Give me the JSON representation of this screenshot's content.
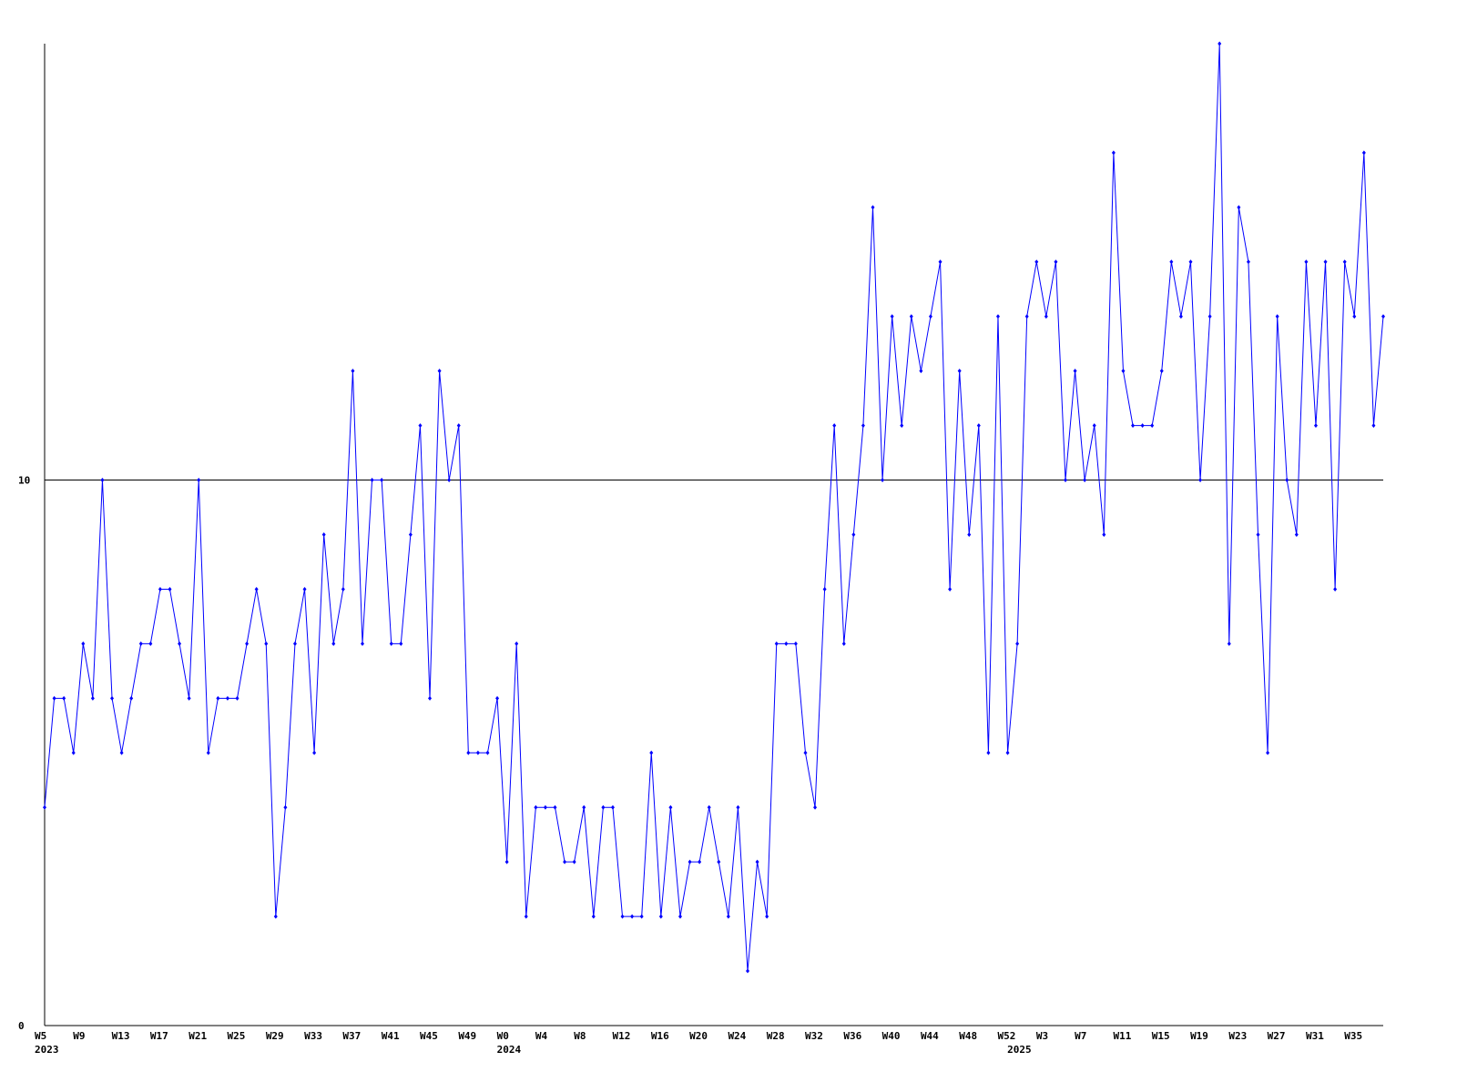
{
  "chart_data": {
    "type": "line",
    "categories": [
      "W5",
      null,
      null,
      null,
      "W9",
      null,
      null,
      null,
      "W13",
      null,
      null,
      null,
      "W17",
      null,
      null,
      null,
      "W21",
      null,
      null,
      null,
      "W25",
      null,
      null,
      null,
      "W29",
      null,
      null,
      null,
      "W33",
      null,
      null,
      null,
      "W37",
      null,
      null,
      null,
      "W41",
      null,
      null,
      null,
      "W45",
      null,
      null,
      null,
      "W49",
      null,
      null,
      null,
      "W0",
      null,
      null,
      null,
      "W4",
      null,
      null,
      null,
      "W8",
      null,
      null,
      null,
      "W12",
      null,
      null,
      null,
      "W16",
      null,
      null,
      null,
      "W20",
      null,
      null,
      null,
      "W24",
      null,
      null,
      null,
      "W28",
      null,
      null,
      null,
      "W32",
      null,
      null,
      null,
      "W36",
      null,
      null,
      null,
      "W40",
      null,
      null,
      null,
      "W44",
      null,
      null,
      null,
      "W48",
      null,
      null,
      null,
      "W52",
      null,
      null,
      null,
      "W3",
      null,
      null,
      null,
      "W7",
      null,
      null,
      null,
      "W11",
      null,
      null,
      null,
      "W15",
      null,
      null,
      null,
      "W19",
      null,
      null,
      null,
      "W23",
      null,
      null,
      null,
      "W27",
      null,
      null,
      null,
      "W31",
      null,
      null,
      null,
      "W35",
      null,
      null,
      null
    ],
    "year_labels": [
      "2023",
      null,
      null,
      null,
      null,
      null,
      null,
      null,
      null,
      null,
      null,
      null,
      null,
      null,
      null,
      null,
      null,
      null,
      null,
      null,
      null,
      null,
      null,
      null,
      null,
      null,
      null,
      null,
      null,
      null,
      null,
      null,
      null,
      null,
      null,
      null,
      null,
      null,
      null,
      null,
      null,
      null,
      null,
      null,
      null,
      null,
      null,
      null,
      "2024",
      null,
      null,
      null,
      null,
      null,
      null,
      null,
      null,
      null,
      null,
      null,
      null,
      null,
      null,
      null,
      null,
      null,
      null,
      null,
      null,
      null,
      null,
      null,
      null,
      null,
      null,
      null,
      null,
      null,
      null,
      null,
      null,
      null,
      null,
      null,
      null,
      null,
      null,
      null,
      null,
      null,
      null,
      null,
      null,
      null,
      null,
      null,
      null,
      null,
      null,
      null,
      null,
      "2025",
      null,
      null,
      null,
      null,
      null,
      null,
      null,
      null,
      null,
      null,
      null,
      null,
      null,
      null,
      null,
      null,
      null,
      null,
      null,
      null,
      null,
      null,
      null,
      null,
      null,
      null,
      null,
      null,
      null,
      null,
      null,
      null,
      null,
      null,
      null,
      null,
      null,
      null
    ],
    "series": [
      {
        "color": "#0000ff",
        "values": [
          4,
          6,
          6,
          5,
          7,
          6,
          10,
          6,
          5,
          6,
          7,
          7,
          8,
          8,
          7,
          6,
          10,
          5,
          6,
          6,
          6,
          7,
          8,
          7,
          2,
          4,
          7,
          8,
          5,
          9,
          7,
          8,
          12,
          7,
          10,
          10,
          7,
          7,
          9,
          11,
          6,
          12,
          10,
          11,
          5,
          5,
          5,
          6,
          3,
          7,
          2,
          4,
          4,
          4,
          3,
          3,
          4,
          2,
          4,
          4,
          2,
          2,
          2,
          5,
          2,
          4,
          2,
          3,
          3,
          4,
          3,
          2,
          4,
          1,
          3,
          2,
          7,
          7,
          7,
          5,
          4,
          8,
          11,
          7,
          9,
          11,
          15,
          10,
          13,
          11,
          13,
          12,
          13,
          14,
          8,
          12,
          9,
          11,
          5,
          13,
          5,
          7,
          13,
          14,
          13,
          14,
          10,
          12,
          10,
          11,
          9,
          16,
          12,
          11,
          11,
          11,
          12,
          14,
          13,
          14,
          10,
          13,
          18,
          7,
          15,
          14,
          9,
          5,
          13,
          10,
          9,
          14,
          11,
          14,
          8,
          14,
          13,
          16,
          11,
          13
        ]
      }
    ],
    "ylim": [
      0,
      18
    ],
    "yticks": [
      0,
      10
    ],
    "grid": true
  }
}
